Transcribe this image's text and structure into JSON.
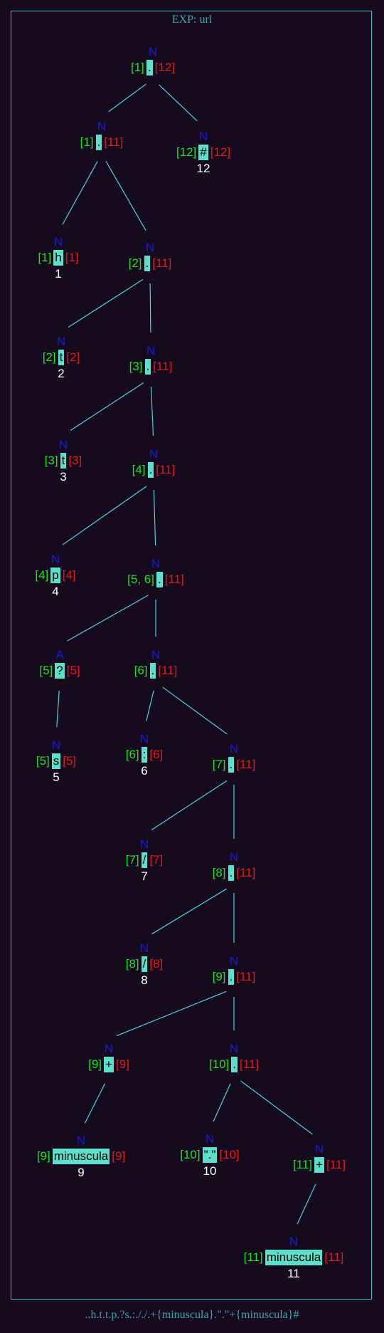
{
  "title": "EXP: url",
  "expression": "..h.t.t.p.?s.:././.+{minuscula}.\".\"+{minuscula}#",
  "colors": {
    "background": "#150a1e",
    "border": "#4fbfb3",
    "caption": "#3fa89e",
    "edge": "#4fd6c6",
    "node_type": "#1a1ad8",
    "firstpos": "#19e619",
    "lastpos": "#e61919",
    "symbol_bg": "#5ce0c9",
    "leaf_position": "#ffffff"
  },
  "nodes": [
    {
      "id": "root",
      "type": "N",
      "first": "[1]",
      "symbol": ".",
      "last": "[12]",
      "position": ""
    },
    {
      "id": "cat1",
      "type": "N",
      "first": "[1]",
      "symbol": ".",
      "last": "[11]",
      "position": ""
    },
    {
      "id": "hash",
      "type": "N",
      "first": "[12]",
      "symbol": "#",
      "last": "[12]",
      "position": "12"
    },
    {
      "id": "h",
      "type": "N",
      "first": "[1]",
      "symbol": "h",
      "last": "[1]",
      "position": "1"
    },
    {
      "id": "cat2",
      "type": "N",
      "first": "[2]",
      "symbol": ".",
      "last": "[11]",
      "position": ""
    },
    {
      "id": "t1",
      "type": "N",
      "first": "[2]",
      "symbol": "t",
      "last": "[2]",
      "position": "2"
    },
    {
      "id": "cat3",
      "type": "N",
      "first": "[3]",
      "symbol": ".",
      "last": "[11]",
      "position": ""
    },
    {
      "id": "t2",
      "type": "N",
      "first": "[3]",
      "symbol": "t",
      "last": "[3]",
      "position": "3"
    },
    {
      "id": "cat4",
      "type": "N",
      "first": "[4]",
      "symbol": ".",
      "last": "[11]",
      "position": ""
    },
    {
      "id": "p",
      "type": "N",
      "first": "[4]",
      "symbol": "p",
      "last": "[4]",
      "position": "4"
    },
    {
      "id": "cat5",
      "type": "N",
      "first": "[5, 6]",
      "symbol": ".",
      "last": "[11]",
      "position": ""
    },
    {
      "id": "opt",
      "type": "A",
      "first": "[5]",
      "symbol": "?",
      "last": "[5]",
      "position": ""
    },
    {
      "id": "cat6",
      "type": "N",
      "first": "[6]",
      "symbol": ".",
      "last": "[11]",
      "position": ""
    },
    {
      "id": "s",
      "type": "N",
      "first": "[5]",
      "symbol": "s",
      "last": "[5]",
      "position": "5"
    },
    {
      "id": "colon",
      "type": "N",
      "first": "[6]",
      "symbol": ":",
      "last": "[6]",
      "position": "6"
    },
    {
      "id": "cat7",
      "type": "N",
      "first": "[7]",
      "symbol": ".",
      "last": "[11]",
      "position": ""
    },
    {
      "id": "slash1",
      "type": "N",
      "first": "[7]",
      "symbol": "/",
      "last": "[7]",
      "position": "7"
    },
    {
      "id": "cat8",
      "type": "N",
      "first": "[8]",
      "symbol": ".",
      "last": "[11]",
      "position": ""
    },
    {
      "id": "slash2",
      "type": "N",
      "first": "[8]",
      "symbol": "/",
      "last": "[8]",
      "position": "8"
    },
    {
      "id": "cat9",
      "type": "N",
      "first": "[9]",
      "symbol": ".",
      "last": "[11]",
      "position": ""
    },
    {
      "id": "plus1",
      "type": "N",
      "first": "[9]",
      "symbol": "+",
      "last": "[9]",
      "position": ""
    },
    {
      "id": "cat10",
      "type": "N",
      "first": "[10]",
      "symbol": ".",
      "last": "[11]",
      "position": ""
    },
    {
      "id": "min1",
      "type": "N",
      "first": "[9]",
      "symbol": "minuscula",
      "last": "[9]",
      "position": "9"
    },
    {
      "id": "dot",
      "type": "N",
      "first": "[10]",
      "symbol": "\".\"",
      "last": "[10]",
      "position": "10"
    },
    {
      "id": "plus2",
      "type": "N",
      "first": "[11]",
      "symbol": "+",
      "last": "[11]",
      "position": ""
    },
    {
      "id": "min2",
      "type": "N",
      "first": "[11]",
      "symbol": "minuscula",
      "last": "[11]",
      "position": "11"
    }
  ],
  "edges": [
    [
      "root",
      "cat1"
    ],
    [
      "root",
      "hash"
    ],
    [
      "cat1",
      "h"
    ],
    [
      "cat1",
      "cat2"
    ],
    [
      "cat2",
      "t1"
    ],
    [
      "cat2",
      "cat3"
    ],
    [
      "cat3",
      "t2"
    ],
    [
      "cat3",
      "cat4"
    ],
    [
      "cat4",
      "p"
    ],
    [
      "cat4",
      "cat5"
    ],
    [
      "cat5",
      "opt"
    ],
    [
      "cat5",
      "cat6"
    ],
    [
      "opt",
      "s"
    ],
    [
      "cat6",
      "colon"
    ],
    [
      "cat6",
      "cat7"
    ],
    [
      "cat7",
      "slash1"
    ],
    [
      "cat7",
      "cat8"
    ],
    [
      "cat8",
      "slash2"
    ],
    [
      "cat8",
      "cat9"
    ],
    [
      "cat9",
      "plus1"
    ],
    [
      "cat9",
      "cat10"
    ],
    [
      "plus1",
      "min1"
    ],
    [
      "cat10",
      "dot"
    ],
    [
      "cat10",
      "plus2"
    ],
    [
      "plus2",
      "min2"
    ]
  ]
}
